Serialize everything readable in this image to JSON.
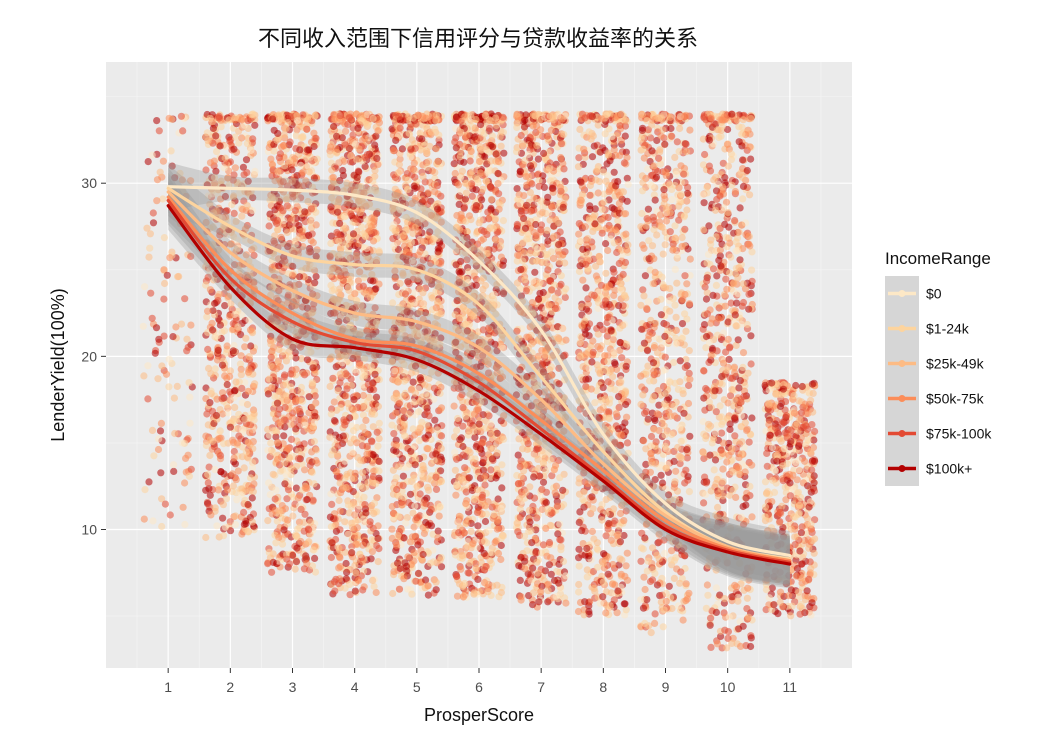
{
  "chart_data": {
    "type": "scatter",
    "title": "不同收入范围下信用评分与贷款收益率的关系",
    "xlabel": "ProsperScore",
    "ylabel": "LenderYield(100%)",
    "xlim": [
      0,
      12
    ],
    "ylim": [
      2,
      37
    ],
    "x_ticks": [
      1,
      2,
      3,
      4,
      5,
      6,
      7,
      8,
      9,
      10,
      11
    ],
    "y_ticks": [
      10,
      20,
      30
    ],
    "grid": true,
    "panel_background": "#ebebeb",
    "legend": {
      "title": "IncomeRange",
      "position": "right"
    },
    "point_distribution": {
      "description_note": "jittered points per score",
      "scores": [
        1,
        2,
        3,
        4,
        5,
        6,
        7,
        8,
        9,
        10,
        11
      ],
      "y_min": [
        10,
        9.5,
        7.5,
        6.2,
        6.2,
        6,
        5.5,
        5,
        4,
        3,
        5
      ],
      "y_max": [
        34,
        34,
        34,
        34,
        34,
        34,
        34,
        34,
        34,
        34,
        18.5
      ],
      "density": [
        120,
        650,
        900,
        1000,
        1000,
        1000,
        900,
        800,
        650,
        650,
        500
      ]
    },
    "series": [
      {
        "name": "$0",
        "color": "#fde8c6",
        "x": [
          1,
          2,
          3,
          4,
          5,
          6,
          7,
          8,
          9,
          10,
          11
        ],
        "y": [
          29.8,
          29.7,
          29.6,
          29.3,
          28.3,
          25.5,
          21.5,
          15.5,
          11.5,
          9.3,
          8.5
        ]
      },
      {
        "name": "$1-24k",
        "color": "#fdd49e",
        "x": [
          1,
          2,
          3,
          4,
          5,
          6,
          7,
          8,
          9,
          10,
          11
        ],
        "y": [
          29.7,
          27.5,
          25.8,
          25.3,
          25.0,
          23.0,
          18.8,
          14.5,
          11.0,
          9.0,
          8.3
        ]
      },
      {
        "name": "$25k-49k",
        "color": "#fdbb84",
        "x": [
          1,
          2,
          3,
          4,
          5,
          6,
          7,
          8,
          9,
          10,
          11
        ],
        "y": [
          29.5,
          26.0,
          23.8,
          22.5,
          22.0,
          20.5,
          17.5,
          13.8,
          10.8,
          9.0,
          8.2
        ]
      },
      {
        "name": "$50k-75k",
        "color": "#fc8d59",
        "x": [
          1,
          2,
          3,
          4,
          5,
          6,
          7,
          8,
          9,
          10,
          11
        ],
        "y": [
          29.2,
          25.0,
          22.5,
          21.0,
          20.6,
          19.0,
          16.3,
          13.4,
          10.5,
          8.9,
          8.2
        ]
      },
      {
        "name": "$75k-100k",
        "color": "#e34a33",
        "x": [
          1,
          2,
          3,
          4,
          5,
          6,
          7,
          8,
          9,
          10,
          11
        ],
        "y": [
          29.0,
          24.5,
          22.0,
          20.8,
          20.3,
          18.5,
          15.8,
          13.0,
          10.2,
          8.8,
          8.1
        ]
      },
      {
        "name": "$100k+",
        "color": "#b30000",
        "x": [
          1,
          2,
          3,
          4,
          5,
          6,
          7,
          8,
          9,
          10,
          11
        ],
        "y": [
          28.7,
          24.0,
          21.0,
          20.5,
          19.8,
          18.0,
          15.5,
          12.8,
          10.0,
          8.7,
          8.0
        ]
      }
    ]
  }
}
